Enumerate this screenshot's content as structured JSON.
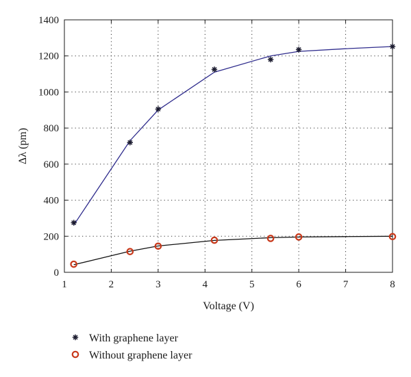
{
  "chart_data": {
    "type": "scatter",
    "xlabel": "Voltage (V)",
    "ylabel": "Δλ (pm)",
    "xlim": [
      1,
      8
    ],
    "ylim": [
      0,
      1400
    ],
    "xticks": [
      1,
      2,
      3,
      4,
      5,
      6,
      7,
      8
    ],
    "yticks": [
      0,
      200,
      400,
      600,
      800,
      1000,
      1200,
      1400
    ],
    "grid": true,
    "legend_position": "bottom",
    "series": [
      {
        "name": "With graphene layer",
        "marker": "asterisk",
        "color": "#1a1a2e",
        "fit_color": "#2e2b8c",
        "points": [
          {
            "x": 1.2,
            "y": 275
          },
          {
            "x": 2.4,
            "y": 720
          },
          {
            "x": 3.0,
            "y": 905
          },
          {
            "x": 4.2,
            "y": 1125
          },
          {
            "x": 5.4,
            "y": 1180
          },
          {
            "x": 6.0,
            "y": 1235
          },
          {
            "x": 8.0,
            "y": 1252
          }
        ],
        "fit": [
          {
            "x": 1.2,
            "y": 262
          },
          {
            "x": 2.4,
            "y": 730
          },
          {
            "x": 3.0,
            "y": 900
          },
          {
            "x": 4.2,
            "y": 1110
          },
          {
            "x": 5.4,
            "y": 1200
          },
          {
            "x": 6.0,
            "y": 1225
          },
          {
            "x": 7.0,
            "y": 1240
          },
          {
            "x": 8.0,
            "y": 1252
          }
        ]
      },
      {
        "name": "Without graphene layer",
        "marker": "circle",
        "color": "#c8381a",
        "fit_color": "#111111",
        "points": [
          {
            "x": 1.2,
            "y": 45
          },
          {
            "x": 2.4,
            "y": 115
          },
          {
            "x": 3.0,
            "y": 145
          },
          {
            "x": 4.2,
            "y": 178
          },
          {
            "x": 5.4,
            "y": 188
          },
          {
            "x": 6.0,
            "y": 196
          },
          {
            "x": 8.0,
            "y": 198
          }
        ],
        "fit": [
          {
            "x": 1.2,
            "y": 42
          },
          {
            "x": 2.4,
            "y": 117
          },
          {
            "x": 3.0,
            "y": 146
          },
          {
            "x": 4.2,
            "y": 177
          },
          {
            "x": 5.4,
            "y": 192
          },
          {
            "x": 6.0,
            "y": 196
          },
          {
            "x": 7.0,
            "y": 198
          },
          {
            "x": 8.0,
            "y": 200
          }
        ]
      }
    ]
  }
}
